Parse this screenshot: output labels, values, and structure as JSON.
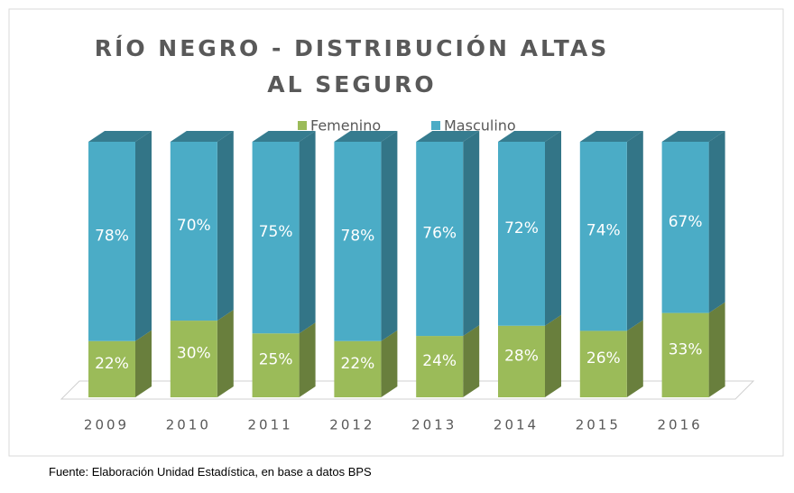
{
  "chart_data": {
    "type": "bar3d_stacked_percent",
    "title": "RÍO NEGRO - DISTRIBUCIÓN ALTAS AL SEGURO",
    "categories": [
      "2009",
      "2010",
      "2011",
      "2012",
      "2013",
      "2014",
      "2015",
      "2016"
    ],
    "series": [
      {
        "name": "Femenino",
        "color": "#9bbb59",
        "values": [
          22,
          30,
          25,
          22,
          24,
          28,
          26,
          33
        ],
        "value_labels": [
          "22%",
          "30%",
          "25%",
          "22%",
          "24%",
          "28%",
          "26%",
          "33%"
        ]
      },
      {
        "name": "Masculino",
        "color": "#4bacc6",
        "values": [
          78,
          70,
          75,
          78,
          76,
          72,
          74,
          67
        ],
        "value_labels": [
          "78%",
          "70%",
          "75%",
          "78%",
          "76%",
          "72%",
          "74%",
          "67%"
        ]
      }
    ],
    "legend": "top",
    "source": "Fuente: Elaboración Unidad Estadística, en base a datos BPS"
  }
}
